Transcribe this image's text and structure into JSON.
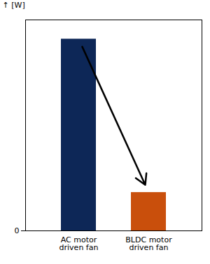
{
  "chart_data": {
    "type": "bar",
    "ylabel": "[W]",
    "categories": [
      "AC motor\ndriven fan",
      "BLDC motor\ndriven fan"
    ],
    "values": [
      100,
      20
    ],
    "colors": [
      "#0d2757",
      "#c94f0c"
    ],
    "ylim": [
      0,
      110
    ],
    "yticks": [
      0
    ],
    "grid": false
  }
}
